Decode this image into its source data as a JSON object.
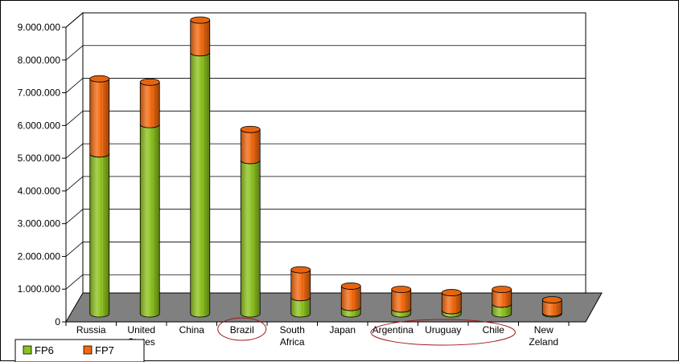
{
  "chart_data": {
    "type": "bar",
    "stacked": true,
    "style": "3d-cylinder",
    "categories": [
      [
        "Russia"
      ],
      [
        "United",
        "States"
      ],
      [
        "China"
      ],
      [
        "Brazil"
      ],
      [
        "South",
        "Africa"
      ],
      [
        "Japan"
      ],
      [
        "Argentina"
      ],
      [
        "Uruguay"
      ],
      [
        "Chile"
      ],
      [
        "New",
        "Zeland"
      ]
    ],
    "series": [
      {
        "name": "FP6",
        "color": "#8dc21f",
        "values": [
          4900000,
          5800000,
          8000000,
          4700000,
          500000,
          200000,
          150000,
          100000,
          300000,
          30000
        ]
      },
      {
        "name": "FP7",
        "color": "#f26a10",
        "values": [
          2300000,
          1300000,
          1000000,
          950000,
          850000,
          650000,
          600000,
          550000,
          450000,
          400000
        ]
      }
    ],
    "ylim": [
      0,
      9000000
    ],
    "yticks": [
      "0",
      "1.000.000",
      "2.000.000",
      "3.000.000",
      "4.000.000",
      "5.000.000",
      "6.000.000",
      "7.000.000",
      "8.000.000",
      "9.000.000"
    ],
    "grid": true,
    "legend_position": "bottom-left",
    "highlighted_categories": [
      "Brazil",
      "Argentina",
      "Uruguay",
      "Chile"
    ]
  }
}
